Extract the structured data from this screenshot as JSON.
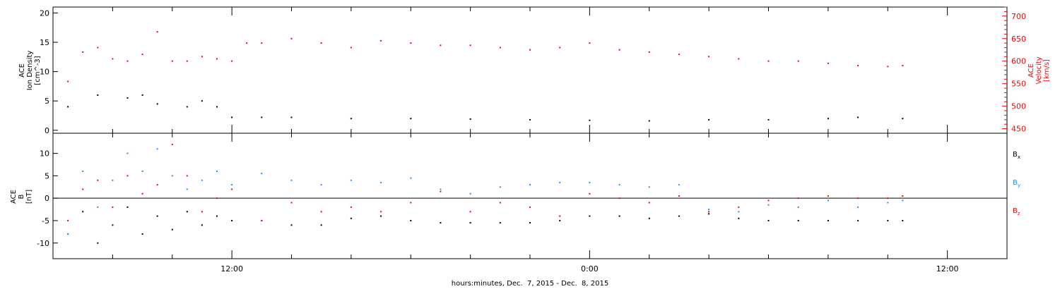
{
  "chart_data": [
    {
      "type": "scatter",
      "panel": "top",
      "ylabel_left": [
        "ACE",
        "Ion Density",
        "[cm^-3]"
      ],
      "ylabel_right": [
        "ACE",
        "Velocity",
        "[km/s]"
      ],
      "ylim_left": [
        -0.5,
        21
      ],
      "ylim_right": [
        440,
        720
      ],
      "yticks_left": [
        0,
        5,
        10,
        15,
        20
      ],
      "yticks_right": [
        450,
        500,
        550,
        600,
        650,
        700
      ],
      "series": [
        {
          "color": "#000000",
          "axis": "left",
          "x": [
            6.5,
            7.5,
            8.5,
            9.0,
            9.5,
            10.5,
            11.0,
            11.5,
            12.0,
            13.0,
            14.0,
            16.0,
            18.0,
            20.0,
            22.0,
            24.0,
            26.0,
            28.0,
            30.0,
            32.0,
            33.0,
            34.5
          ],
          "y": [
            4.0,
            6.0,
            5.5,
            6.0,
            4.5,
            4.0,
            5.0,
            4.0,
            2.2,
            2.2,
            2.2,
            2.0,
            2.0,
            1.9,
            1.8,
            1.7,
            1.6,
            1.8,
            1.8,
            2.0,
            2.2,
            2.0
          ]
        },
        {
          "color": "#ff0000",
          "axis": "right",
          "x": [
            6.5,
            7.0,
            7.5,
            8.0,
            8.5,
            9.0,
            9.5,
            10.0,
            10.5,
            11.0,
            11.5,
            12.0,
            12.5,
            13.0,
            14.0,
            15.0,
            16.0,
            17.0,
            18.0,
            19.0,
            20.0,
            21.0,
            22.0,
            23.0,
            24.0,
            25.0,
            26.0,
            27.0,
            28.0,
            29.0,
            30.0,
            31.0,
            32.0,
            33.0,
            34.0,
            34.5
          ],
          "y": [
            555,
            620,
            630,
            605,
            600,
            615,
            665,
            600,
            600,
            610,
            605,
            600,
            640,
            640,
            650,
            640,
            630,
            645,
            640,
            635,
            635,
            630,
            625,
            630,
            640,
            625,
            620,
            615,
            610,
            605,
            600,
            600,
            595,
            590,
            588,
            590
          ]
        }
      ]
    },
    {
      "type": "scatter",
      "panel": "bottom",
      "ylabel": [
        "ACE",
        "B",
        "[nT]"
      ],
      "ylim": [
        -13.5,
        14.5
      ],
      "yticks": [
        -10,
        -5,
        0,
        5,
        10
      ],
      "zero_line": true,
      "series": [
        {
          "name": "Bx",
          "color": "#000000",
          "x": [
            6.5,
            7.0,
            7.5,
            8.0,
            8.5,
            9.0,
            9.5,
            10.0,
            10.5,
            11.0,
            11.5,
            12.0,
            13.0,
            14.0,
            15.0,
            16.0,
            17.0,
            18.0,
            19.0,
            20.0,
            21.0,
            22.0,
            23.0,
            24.0,
            25.0,
            26.0,
            27.0,
            28.0,
            29.0,
            30.0,
            31.0,
            32.0,
            33.0,
            34.0,
            34.5
          ],
          "y": [
            -8.0,
            -3.0,
            -10.0,
            -6.0,
            -2.0,
            -8.0,
            -4.0,
            -7.0,
            -3.0,
            -6.0,
            -4.0,
            -5.0,
            -5.0,
            -6.0,
            -6.0,
            -4.5,
            -4.0,
            -5.0,
            -5.5,
            -5.5,
            -5.5,
            -5.5,
            -5.0,
            -4.0,
            -4.0,
            -4.5,
            -4.0,
            -3.5,
            -4.5,
            -5.0,
            -5.0,
            -5.0,
            -5.0,
            -5.0,
            -5.0
          ]
        },
        {
          "name": "By",
          "color": "#1e90ff",
          "x": [
            6.5,
            7.0,
            7.5,
            8.0,
            8.5,
            9.0,
            9.5,
            10.0,
            10.5,
            11.0,
            11.5,
            12.0,
            13.0,
            14.0,
            15.0,
            16.0,
            17.0,
            18.0,
            19.0,
            20.0,
            21.0,
            22.0,
            23.0,
            24.0,
            25.0,
            26.0,
            27.0,
            28.0,
            29.0,
            30.0,
            31.0,
            32.0,
            33.0,
            34.0,
            34.5
          ],
          "y": [
            -8.0,
            6.0,
            -2.0,
            4.0,
            10.0,
            6.0,
            11.0,
            5.0,
            2.0,
            4.0,
            6.0,
            3.0,
            5.5,
            4.0,
            3.0,
            4.0,
            3.5,
            4.5,
            2.0,
            1.0,
            2.5,
            3.0,
            3.5,
            3.5,
            3.0,
            2.5,
            3.0,
            -2.5,
            -3.0,
            -1.5,
            -2.0,
            -0.5,
            -2.0,
            -1.0,
            -0.5
          ]
        },
        {
          "name": "Bz",
          "color": "#ff0000",
          "x": [
            6.5,
            7.0,
            7.5,
            8.0,
            8.5,
            9.0,
            9.5,
            10.0,
            10.5,
            11.0,
            11.5,
            12.0,
            13.0,
            14.0,
            15.0,
            16.0,
            17.0,
            18.0,
            19.0,
            20.0,
            21.0,
            22.0,
            23.0,
            24.0,
            25.0,
            26.0,
            27.0,
            28.0,
            29.0,
            30.0,
            31.0,
            32.0,
            33.0,
            34.0,
            34.5
          ],
          "y": [
            -5.0,
            2.0,
            4.0,
            -2.0,
            5.0,
            1.0,
            3.0,
            12.0,
            5.0,
            -3.0,
            0.0,
            2.0,
            -5.0,
            -1.0,
            -3.0,
            -2.0,
            -3.0,
            -1.0,
            1.5,
            -3.0,
            -1.0,
            -2.0,
            -4.0,
            1.0,
            0.0,
            -1.0,
            0.5,
            -3.0,
            -2.0,
            -0.5,
            0.0,
            0.5,
            0.0,
            0.0,
            0.5
          ]
        }
      ]
    }
  ],
  "xaxis": {
    "xlim": [
      6.0,
      38.0
    ],
    "major_ticks": [
      {
        "x": 12,
        "label": "12:00"
      },
      {
        "x": 24,
        "label": "0:00"
      },
      {
        "x": 36,
        "label": "12:00"
      }
    ],
    "minor_step": 2,
    "xlabel": "hours:minutes, Dec.  7, 2015 - Dec.  8, 2015"
  },
  "legend": [
    {
      "base": "B",
      "sub": "x",
      "color": "#000000"
    },
    {
      "base": "B",
      "sub": "y",
      "color": "#1e90ff"
    },
    {
      "base": "B",
      "sub": "z",
      "color": "#ff0000"
    }
  ]
}
